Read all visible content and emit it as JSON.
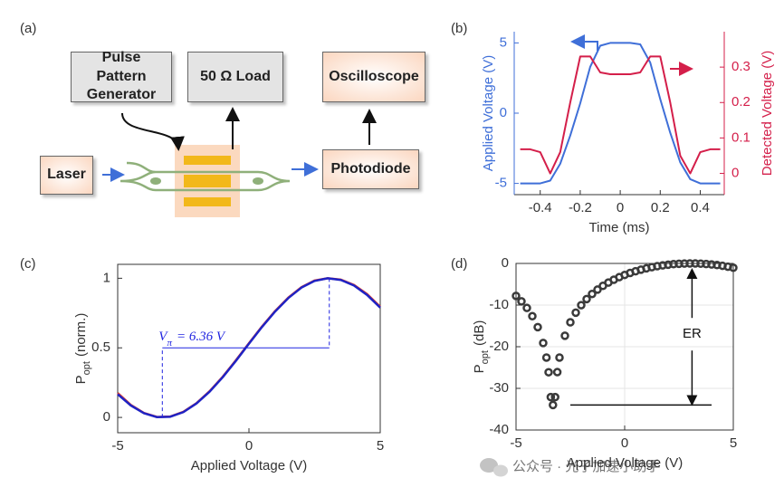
{
  "panel_labels": [
    "(a)",
    "(b)",
    "(c)",
    "(d)"
  ],
  "diagram": {
    "nodes": [
      {
        "label": "Pulse Pattern Generator"
      },
      {
        "label": "50 Ω Load"
      },
      {
        "label": "Oscilloscope"
      },
      {
        "label": "Laser"
      },
      {
        "label": "Photodiode"
      }
    ]
  },
  "chart_data": [
    {
      "type": "line",
      "xlabel": "Time (ms)",
      "ylabel": "Applied Voltage (V)",
      "y2label": "Detected Voltage (V)",
      "x": [
        -0.5,
        -0.45,
        -0.4,
        -0.35,
        -0.3,
        -0.25,
        -0.2,
        -0.15,
        -0.1,
        -0.05,
        0,
        0.05,
        0.1,
        0.15,
        0.2,
        0.25,
        0.3,
        0.35,
        0.4,
        0.45,
        0.5
      ],
      "xlim": [
        -0.53,
        0.52
      ],
      "xticks": [
        -0.4,
        -0.2,
        0,
        0.2,
        0.4
      ],
      "ylim": [
        -5.8,
        5.8
      ],
      "yticks": [
        -5,
        0,
        5
      ],
      "y2lim": [
        -0.06,
        0.4
      ],
      "y2ticks": [
        0,
        0.1,
        0.2,
        0.3
      ],
      "series": [
        {
          "color": "#3f6fd8",
          "values": [
            -5,
            -5,
            -5,
            -4.8,
            -3.6,
            -1.6,
            0.7,
            3.3,
            4.8,
            5,
            5,
            5,
            4.9,
            3.6,
            1.0,
            -1.4,
            -3.5,
            -4.7,
            -5,
            -5,
            -5
          ]
        },
        {
          "color": "#d41f4a",
          "axis": "y2",
          "values": [
            0.068,
            0.068,
            0.06,
            0.0,
            0.06,
            0.2,
            0.33,
            0.33,
            0.285,
            0.28,
            0.28,
            0.28,
            0.285,
            0.33,
            0.33,
            0.2,
            0.05,
            0.0,
            0.06,
            0.068,
            0.068
          ]
        }
      ]
    },
    {
      "type": "line",
      "xlabel": "Applied Voltage (V)",
      "ylabel": {
        "main": "P",
        "sub": "opt",
        "rest": "(norm.)"
      },
      "x": [
        -5,
        -4.5,
        -4,
        -3.5,
        -3,
        -2.5,
        -2,
        -1.5,
        -1,
        -0.5,
        0,
        0.5,
        1,
        1.5,
        2,
        2.5,
        3,
        3.5,
        4,
        4.5,
        5
      ],
      "xlim": [
        -5,
        5
      ],
      "xticks": [
        -5,
        0,
        5
      ],
      "ylim": [
        -0.11,
        1.1
      ],
      "yticks": [
        0,
        0.5,
        1
      ],
      "series": [
        {
          "color": "#e8402a",
          "values": [
            0.175,
            0.09,
            0.032,
            0.003,
            0.006,
            0.04,
            0.102,
            0.188,
            0.292,
            0.41,
            0.533,
            0.654,
            0.765,
            0.861,
            0.936,
            0.984,
            1.0,
            0.99,
            0.952,
            0.886,
            0.795
          ]
        },
        {
          "color": "#1f23c4",
          "values": [
            0.167,
            0.086,
            0.03,
            0.002,
            0.005,
            0.038,
            0.1,
            0.185,
            0.289,
            0.406,
            0.53,
            0.651,
            0.762,
            0.858,
            0.933,
            0.981,
            1.0,
            0.988,
            0.948,
            0.88,
            0.789
          ]
        }
      ],
      "annotation": {
        "main": "V",
        "sub": "π",
        "rest": "= 6.36 V",
        "color": "#1f23e0",
        "x": [
          -3.3,
          3.06
        ],
        "y": 0.5
      }
    },
    {
      "type": "scatter",
      "xlabel": "Applied Voltage (V)",
      "ylabel": {
        "main": "P",
        "sub": "opt",
        "rest": "(dB)"
      },
      "x": [
        -5,
        -4.75,
        -4.5,
        -4.25,
        -4,
        -3.75,
        -3.6,
        -3.5,
        -3.4,
        -3.3,
        -3.2,
        -3.1,
        -3,
        -2.75,
        -2.5,
        -2.25,
        -2,
        -1.75,
        -1.5,
        -1.25,
        -1,
        -0.75,
        -0.5,
        -0.25,
        0,
        0.25,
        0.5,
        0.75,
        1,
        1.25,
        1.5,
        1.75,
        2,
        2.25,
        2.5,
        2.75,
        3,
        3.25,
        3.5,
        3.75,
        4,
        4.25,
        4.5,
        4.75,
        5
      ],
      "values": [
        -7.79,
        -9.11,
        -10.69,
        -12.67,
        -15.29,
        -19.1,
        -22.6,
        -26.13,
        -32.1,
        -34,
        -32.1,
        -26.1,
        -22.6,
        -17.37,
        -14.14,
        -11.82,
        -10.02,
        -8.55,
        -7.33,
        -6.29,
        -5.38,
        -4.6,
        -3.91,
        -3.3,
        -2.76,
        -2.28,
        -1.87,
        -1.5,
        -1.18,
        -0.9,
        -0.66,
        -0.46,
        -0.3,
        -0.17,
        -0.08,
        -0.03,
        0,
        -0.01,
        -0.05,
        -0.13,
        -0.24,
        -0.38,
        -0.56,
        -0.78,
        -1.04
      ],
      "color": "#3a3a3a",
      "grid": true,
      "xlim": [
        -5,
        5
      ],
      "xticks": [
        -5,
        0,
        5
      ],
      "ylim": [
        -40,
        0
      ],
      "yticks": [
        -40,
        -30,
        -20,
        -10,
        0
      ],
      "annotation": {
        "text": "ER",
        "x": 3.1,
        "y": [
          0,
          -34
        ],
        "line_x": [
          -2.5,
          4
        ]
      }
    }
  ],
  "watermark": "公众号 · 光子加速小助手"
}
